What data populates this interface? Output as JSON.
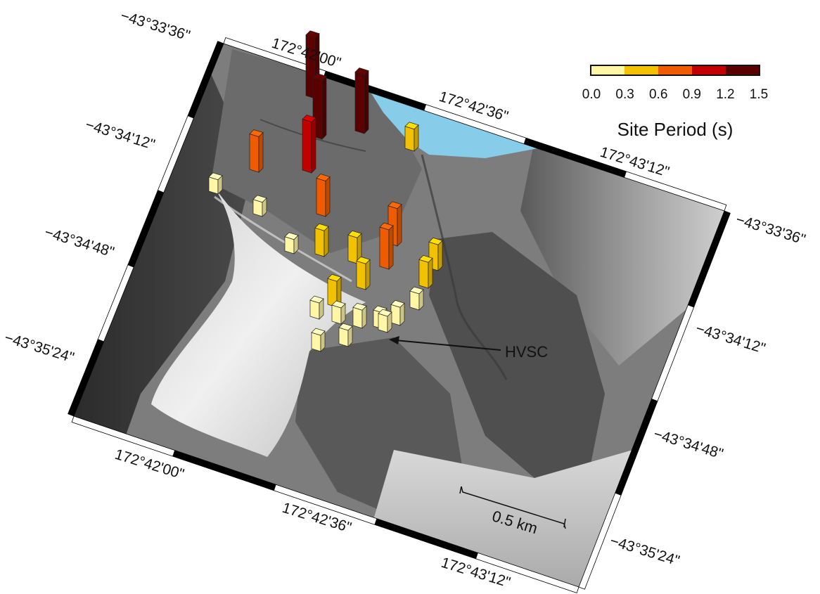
{
  "map": {
    "top_labels": [
      "172°42'00\"",
      "172°42'36\"",
      "172°43'12\""
    ],
    "bottom_labels": [
      "172°42'00\"",
      "172°42'36\"",
      "172°43'12\""
    ],
    "left_labels": [
      "−43°33'36\"",
      "−43°34'12\"",
      "−43°34'48\"",
      "−43°35'24\""
    ],
    "right_labels": [
      "−43°33'36\"",
      "−43°34'12\"",
      "−43°34'48\"",
      "−43°35'24\""
    ],
    "annotation": "HVSC",
    "scale_bar": "0.5 km"
  },
  "colorbar": {
    "title": "Site Period (s)",
    "ticks": [
      "0.0",
      "0.3",
      "0.6",
      "0.9",
      "1.2",
      "1.5"
    ],
    "colors": [
      "#fff6a6",
      "#f2c200",
      "#ee5b00",
      "#c20000",
      "#5a0000"
    ]
  },
  "sites": [
    {
      "period": 1.35
    },
    {
      "period": 1.3
    },
    {
      "period": 1.3
    },
    {
      "period": 1.1
    },
    {
      "period": 0.7
    },
    {
      "period": 0.7
    },
    {
      "period": 0.35
    },
    {
      "period": 0.15
    },
    {
      "period": 0.15
    },
    {
      "period": 0.15
    },
    {
      "period": 0.45
    },
    {
      "period": 0.45
    },
    {
      "period": 0.75
    },
    {
      "period": 0.8
    },
    {
      "period": 0.45
    },
    {
      "period": 0.45
    },
    {
      "period": 0.45
    },
    {
      "period": 0.45
    },
    {
      "period": 0.2
    },
    {
      "period": 0.2
    },
    {
      "period": 0.2
    },
    {
      "period": 0.25
    },
    {
      "period": 0.25
    },
    {
      "period": 0.2
    },
    {
      "period": 0.2
    },
    {
      "period": 0.2
    },
    {
      "period": 0.2
    }
  ]
}
